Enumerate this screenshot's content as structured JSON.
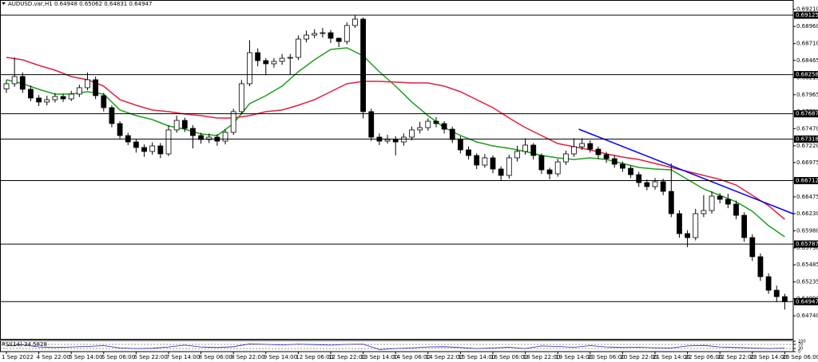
{
  "chart_data": {
    "type": "candlestick",
    "title": "AUDUSD.var,H1 0.64948 0.65062 0.64831 0.64947",
    "categories": [
      "1 Sep 2022",
      null,
      null,
      null,
      "4 Sep 22:00",
      null,
      null,
      null,
      "5 Sep 14:00",
      null,
      null,
      null,
      "6 Sep 06:00",
      null,
      null,
      null,
      "6 Sep 22:00",
      null,
      null,
      null,
      "7 Sep 14:00",
      null,
      null,
      null,
      "8 Sep 06:00",
      null,
      null,
      null,
      "8 Sep 22:00",
      null,
      null,
      null,
      "9 Sep 14:00",
      null,
      null,
      null,
      "12 Sep 06:00",
      null,
      null,
      null,
      "12 Sep 22:00",
      null,
      null,
      null,
      "13 Sep 14:00",
      null,
      null,
      null,
      "14 Sep 06:00",
      null,
      null,
      null,
      "14 Sep 22:00",
      null,
      null,
      null,
      "15 Sep 14:00",
      null,
      null,
      null,
      "16 Sep 06:00",
      null,
      null,
      null,
      "18 Sep 22:00",
      null,
      null,
      null,
      "19 Sep 14:00",
      null,
      null,
      null,
      "20 Sep 06:00",
      null,
      null,
      null,
      "20 Sep 22:00",
      null,
      null,
      null,
      "21 Sep 14:00",
      null,
      null,
      null,
      "22 Sep 06:00",
      null,
      null,
      null,
      "22 Sep 22:00",
      null,
      null,
      null,
      "23 Sep 14:00",
      null,
      null,
      null,
      "26 Sep 06:00"
    ],
    "open": [
      0.6805,
      0.68125,
      0.6823,
      0.68044,
      0.67916,
      0.67858,
      0.67892,
      0.67939,
      0.67904,
      0.67974,
      0.68067,
      0.68183,
      0.67951,
      0.67776,
      0.67544,
      0.67369,
      0.67276,
      0.67195,
      0.67137,
      0.67218,
      0.67102,
      0.67451,
      0.6759,
      0.67474,
      0.67369,
      0.67311,
      0.67346,
      0.67288,
      0.67416,
      0.67718,
      0.68125,
      0.68578,
      0.68462,
      0.68416,
      0.68451,
      0.68497,
      0.68509,
      0.68776,
      0.68834,
      0.68858,
      0.68869,
      0.68788,
      0.68741,
      0.68974,
      0.69067,
      0.67718,
      0.67346,
      0.67288,
      0.67311,
      0.67276,
      0.67346,
      0.67451,
      0.67485,
      0.67578,
      0.67544,
      0.67462,
      0.67311,
      0.6716,
      0.67078,
      0.66939,
      0.67044,
      0.66881,
      0.66788,
      0.67044,
      0.67137,
      0.6723,
      0.67078,
      0.66869,
      0.66811,
      0.66985,
      0.67102,
      0.67206,
      0.67253,
      0.67171,
      0.6709,
      0.67032,
      0.66951,
      0.66892,
      0.66799,
      0.66683,
      0.66625,
      0.66695,
      0.66555,
      0.6623,
      0.65939,
      0.65881,
      0.6623,
      0.66276,
      0.66485,
      0.66439,
      0.66369,
      0.66206,
      0.65881,
      0.65602,
      0.65311,
      0.65113,
      0.6502
    ],
    "high": [
      0.6818,
      0.68509,
      0.6829,
      0.681,
      0.6796,
      0.6795,
      0.6799,
      0.6798,
      0.6802,
      0.6811,
      0.6829,
      0.6823,
      0.6799,
      0.6781,
      0.6758,
      0.6741,
      0.6732,
      0.6724,
      0.6727,
      0.6726,
      0.6752,
      0.6766,
      0.6763,
      0.6752,
      0.6741,
      0.674,
      0.6739,
      0.6746,
      0.6776,
      0.6818,
      0.6876,
      0.6864,
      0.685,
      0.685,
      0.6856,
      0.6856,
      0.6883,
      0.689,
      0.6892,
      0.6894,
      0.6891,
      0.688,
      0.6902,
      0.69125,
      0.6909,
      0.6776,
      0.674,
      0.6738,
      0.6736,
      0.674,
      0.675,
      0.6757,
      0.6762,
      0.6764,
      0.6758,
      0.675,
      0.6736,
      0.6721,
      0.6711,
      0.671,
      0.6708,
      0.6692,
      0.6709,
      0.6722,
      0.6733,
      0.6726,
      0.6711,
      0.669,
      0.6703,
      0.6715,
      0.6733,
      0.6733,
      0.673,
      0.6721,
      0.6713,
      0.6708,
      0.6699,
      0.6693,
      0.6684,
      0.6673,
      0.6675,
      0.6674,
      0.66962,
      0.6628,
      0.6599,
      0.663,
      0.665,
      0.6656,
      0.6653,
      0.6652,
      0.6642,
      0.6625,
      0.6593,
      0.6565,
      0.6536,
      0.6518,
      0.65062
    ],
    "low": [
      0.6799,
      0.6808,
      0.6799,
      0.6787,
      0.678,
      0.6781,
      0.6785,
      0.6786,
      0.6787,
      0.6793,
      0.6803,
      0.679,
      0.6772,
      0.6749,
      0.6732,
      0.6723,
      0.6712,
      0.6706,
      0.6709,
      0.6704,
      0.6707,
      0.6741,
      0.6742,
      0.6718,
      0.6725,
      0.6726,
      0.6722,
      0.6724,
      0.6738,
      0.6768,
      0.6809,
      0.6838,
      0.6825,
      0.6836,
      0.684,
      0.6826,
      0.6847,
      0.6873,
      0.6879,
      0.688,
      0.6872,
      0.6866,
      0.687,
      0.6894,
      0.6762,
      0.6729,
      0.6723,
      0.6725,
      0.6708,
      0.6722,
      0.673,
      0.674,
      0.6744,
      0.6749,
      0.674,
      0.6726,
      0.6711,
      0.6702,
      0.6688,
      0.669,
      0.6682,
      0.66712,
      0.6674,
      0.6699,
      0.6709,
      0.6702,
      0.6681,
      0.6673,
      0.6677,
      0.6694,
      0.6706,
      0.6716,
      0.6712,
      0.6703,
      0.6697,
      0.669,
      0.6684,
      0.6675,
      0.6662,
      0.6657,
      0.6658,
      0.665,
      0.6618,
      0.6588,
      0.65741,
      0.6584,
      0.6618,
      0.6623,
      0.6638,
      0.6631,
      0.6615,
      0.6582,
      0.6554,
      0.6525,
      0.6506,
      0.6494,
      0.64831
    ],
    "close": [
      0.68125,
      0.6823,
      0.68044,
      0.67916,
      0.67858,
      0.67892,
      0.67939,
      0.67904,
      0.67974,
      0.68067,
      0.68183,
      0.67951,
      0.67776,
      0.67544,
      0.67369,
      0.67276,
      0.67195,
      0.67137,
      0.67218,
      0.67102,
      0.67451,
      0.6759,
      0.67474,
      0.67369,
      0.67311,
      0.67346,
      0.67288,
      0.67416,
      0.67718,
      0.68125,
      0.68578,
      0.68462,
      0.68416,
      0.68451,
      0.68497,
      0.68509,
      0.68776,
      0.68834,
      0.68858,
      0.68869,
      0.68788,
      0.68741,
      0.68974,
      0.69067,
      0.67718,
      0.67346,
      0.67288,
      0.67311,
      0.67276,
      0.67346,
      0.67451,
      0.67485,
      0.67578,
      0.67544,
      0.67462,
      0.67311,
      0.6716,
      0.67078,
      0.66939,
      0.67044,
      0.66881,
      0.66788,
      0.67044,
      0.67137,
      0.6723,
      0.67078,
      0.66869,
      0.66811,
      0.66985,
      0.67102,
      0.67206,
      0.67253,
      0.67171,
      0.6709,
      0.67032,
      0.66951,
      0.66892,
      0.66799,
      0.66683,
      0.66625,
      0.66695,
      0.66555,
      0.6623,
      0.65939,
      0.65881,
      0.6623,
      0.66276,
      0.66485,
      0.66439,
      0.66369,
      0.66206,
      0.65881,
      0.65602,
      0.65311,
      0.65113,
      0.6502,
      0.64947
    ],
    "up_color": "#ffffff",
    "down_color": "#000000",
    "ylim": [
      0.64404,
      0.69346
    ],
    "yticks": [
      {
        "value": 0.6921,
        "label": "0.69210"
      },
      {
        "value": 0.6896,
        "label": "0.68960"
      },
      {
        "value": 0.6871,
        "label": "0.68710"
      },
      0.68465,
      0.68215,
      0.67965,
      {
        "value": 0.6772,
        "label": "0.67720"
      },
      {
        "value": 0.6747,
        "label": "0.67470"
      },
      {
        "value": 0.6722,
        "label": "0.67220"
      },
      0.66975,
      0.66725,
      0.66475,
      {
        "value": 0.6623,
        "label": "0.66230"
      },
      {
        "value": 0.6598,
        "label": "0.65980"
      },
      {
        "value": 0.6573,
        "label": "0.65730"
      },
      0.65485,
      0.65235,
      {
        "value": 0.6499,
        "label": "0.64990"
      },
      {
        "value": 0.6474,
        "label": "0.64740"
      }
    ],
    "hlines": [
      0.69125,
      0.68258,
      0.67687,
      0.67318,
      0.66712,
      0.65787,
      0.64947
    ],
    "hline_color": "#000000",
    "overlays": [
      {
        "color": "#1e9e1e",
        "x": [
          0,
          2,
          4,
          6,
          8,
          10,
          12,
          14,
          16,
          18,
          20,
          22,
          24,
          26,
          28,
          30,
          32,
          34,
          36,
          38,
          40,
          42,
          44,
          46,
          48,
          50,
          52,
          54,
          56,
          58,
          60,
          62,
          64,
          66,
          68,
          70,
          72,
          74,
          76,
          78,
          80,
          82,
          84,
          86,
          88,
          90,
          92,
          94,
          96
        ],
        "values": [
          0.68183,
          0.68125,
          0.68044,
          0.67974,
          0.67974,
          0.68009,
          0.67974,
          0.67741,
          0.6766,
          0.67602,
          0.67509,
          0.67462,
          0.67392,
          0.67369,
          0.67544,
          0.67834,
          0.67951,
          0.6809,
          0.68299,
          0.68474,
          0.68625,
          0.68648,
          0.68532,
          0.68299,
          0.6809,
          0.67858,
          0.6766,
          0.67485,
          0.67369,
          0.67276,
          0.67218,
          0.67183,
          0.67137,
          0.67078,
          0.67044,
          0.6702,
          0.67044,
          0.6702,
          0.66962,
          0.66904,
          0.66881,
          0.66869,
          0.6673,
          0.6659,
          0.66497,
          0.66404,
          0.66265,
          0.66055,
          0.65892
        ]
      },
      {
        "color": "#e0203c",
        "x": [
          0,
          2,
          4,
          6,
          8,
          10,
          12,
          14,
          16,
          18,
          20,
          22,
          24,
          26,
          28,
          30,
          32,
          34,
          36,
          38,
          40,
          42,
          44,
          46,
          48,
          50,
          52,
          54,
          56,
          58,
          60,
          62,
          64,
          66,
          68,
          70,
          72,
          74,
          76,
          78,
          80,
          82,
          84,
          86,
          88,
          90,
          92,
          94,
          96
        ],
        "values": [
          0.68509,
          0.68474,
          0.68392,
          0.68323,
          0.6823,
          0.68183,
          0.6809,
          0.67892,
          0.67811,
          0.67741,
          0.67718,
          0.67683,
          0.6766,
          0.67625,
          0.67625,
          0.6766,
          0.67718,
          0.67741,
          0.67811,
          0.67892,
          0.68009,
          0.68125,
          0.6816,
          0.6816,
          0.68148,
          0.68137,
          0.68137,
          0.6809,
          0.68009,
          0.67892,
          0.67776,
          0.67625,
          0.67485,
          0.67369,
          0.67253,
          0.67206,
          0.6716,
          0.67102,
          0.67055,
          0.6702,
          0.66962,
          0.66904,
          0.66846,
          0.66788,
          0.6673,
          0.66648,
          0.66497,
          0.66346,
          0.66148
        ]
      }
    ],
    "trendline": {
      "color": "#0000ff",
      "x": [
        70.6,
        97
      ],
      "values": [
        0.67462,
        0.6623
      ]
    },
    "indicator": {
      "title": "RSI(14) 34.5828",
      "color": "#2020b0",
      "x": [
        0,
        2,
        4,
        6,
        8,
        10,
        12,
        14,
        16,
        18,
        20,
        22,
        24,
        26,
        28,
        30,
        32,
        34,
        36,
        38,
        40,
        42,
        44,
        46,
        48,
        50,
        52,
        54,
        56,
        58,
        60,
        62,
        64,
        66,
        68,
        70,
        72,
        74,
        76,
        78,
        80,
        82,
        84,
        86,
        88,
        90,
        92,
        94,
        96
      ],
      "values": [
        55,
        65,
        45,
        40,
        45,
        50,
        58,
        35,
        30,
        32,
        45,
        62,
        45,
        40,
        48,
        75,
        70,
        65,
        72,
        68,
        62,
        70,
        72,
        20,
        30,
        35,
        45,
        48,
        40,
        30,
        35,
        42,
        30,
        55,
        50,
        42,
        58,
        45,
        40,
        42,
        38,
        35,
        55,
        60,
        45,
        40,
        35,
        30,
        34.5828
      ],
      "ylim": [
        0,
        100
      ],
      "yticks": [
        100,
        70,
        30,
        0
      ],
      "levels": [
        70,
        30
      ]
    }
  }
}
